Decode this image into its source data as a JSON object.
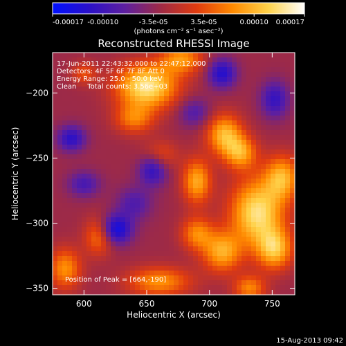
{
  "chart_data": {
    "type": "heatmap",
    "title": "Reconstructed RHESSI Image",
    "xlabel": "Heliocentric X (arcsec)",
    "ylabel": "Heliocentric Y (arcsec)",
    "xlim": [
      575,
      768
    ],
    "ylim": [
      -355,
      -169
    ],
    "x_ticks": [
      600,
      650,
      700,
      750
    ],
    "y_ticks": [
      -200,
      -250,
      -300,
      -350
    ],
    "annotations": [
      "17-Jun-2011 22:43:32.000 to 22:47:12.000",
      "Detectors: 4F 5F 6F 7F 8F  Att 0",
      "Energy Range: 25.0 - 50.0 keV",
      "Clean     Total counts: 3.56e+03"
    ],
    "peak_label": "Position of Peak = [664,-190]",
    "peak_position": [
      664,
      -190
    ],
    "colorbar": {
      "ticks": [
        "-0.00017",
        "-0.00010",
        "-3.5e-05",
        "3.5e-05",
        "0.00010",
        "0.00017"
      ],
      "unit_label": "(photons cm⁻² s⁻¹ asec⁻²)",
      "range": [
        -0.00017,
        0.00017
      ],
      "colors": [
        "#0010ff",
        "#2a10c8",
        "#5d1fa0",
        "#9e2a46",
        "#e03b0f",
        "#ff8a00",
        "#ffd24a",
        "#ffffff"
      ]
    },
    "features": [
      {
        "kind": "peak",
        "x": 650,
        "y": -195,
        "amp": 1.0,
        "sx": 17,
        "sy": 12
      },
      {
        "kind": "peak",
        "x": 678,
        "y": -174,
        "amp": 0.6,
        "sx": 12,
        "sy": 8
      },
      {
        "kind": "peak",
        "x": 640,
        "y": -220,
        "amp": 0.5,
        "sx": 11,
        "sy": 8
      },
      {
        "kind": "peak",
        "x": 712,
        "y": -232,
        "amp": 0.75,
        "sx": 10,
        "sy": 11
      },
      {
        "kind": "peak",
        "x": 725,
        "y": -246,
        "amp": 0.65,
        "sx": 9,
        "sy": 9
      },
      {
        "kind": "peak",
        "x": 690,
        "y": -268,
        "amp": 0.7,
        "sx": 8,
        "sy": 12
      },
      {
        "kind": "peak",
        "x": 738,
        "y": -292,
        "amp": 0.95,
        "sx": 15,
        "sy": 18
      },
      {
        "kind": "peak",
        "x": 758,
        "y": -265,
        "amp": 0.7,
        "sx": 10,
        "sy": 12
      },
      {
        "kind": "peak",
        "x": 752,
        "y": -320,
        "amp": 0.75,
        "sx": 10,
        "sy": 11
      },
      {
        "kind": "peak",
        "x": 710,
        "y": -322,
        "amp": 0.7,
        "sx": 11,
        "sy": 11
      },
      {
        "kind": "peak",
        "x": 690,
        "y": -308,
        "amp": 0.55,
        "sx": 9,
        "sy": 9
      },
      {
        "kind": "peak",
        "x": 660,
        "y": -345,
        "amp": 0.6,
        "sx": 18,
        "sy": 8
      },
      {
        "kind": "peak",
        "x": 612,
        "y": -310,
        "amp": 0.55,
        "sx": 8,
        "sy": 10
      },
      {
        "kind": "peak",
        "x": 585,
        "y": -335,
        "amp": 0.6,
        "sx": 9,
        "sy": 11
      },
      {
        "kind": "peak",
        "x": 660,
        "y": -248,
        "amp": 0.4,
        "sx": 10,
        "sy": 8
      },
      {
        "kind": "peak",
        "x": 732,
        "y": -350,
        "amp": 0.55,
        "sx": 9,
        "sy": 7
      },
      {
        "kind": "peak",
        "x": 600,
        "y": -185,
        "amp": 0.35,
        "sx": 7,
        "sy": 6
      },
      {
        "kind": "dip",
        "x": 625,
        "y": -305,
        "amp": -0.75,
        "sx": 9,
        "sy": 8
      },
      {
        "kind": "dip",
        "x": 655,
        "y": -258,
        "amp": -0.6,
        "sx": 8,
        "sy": 9
      },
      {
        "kind": "dip",
        "x": 710,
        "y": -185,
        "amp": -0.6,
        "sx": 8,
        "sy": 8
      },
      {
        "kind": "dip",
        "x": 590,
        "y": -235,
        "amp": -0.55,
        "sx": 8,
        "sy": 7
      },
      {
        "kind": "dip",
        "x": 752,
        "y": -205,
        "amp": -0.5,
        "sx": 8,
        "sy": 10
      },
      {
        "kind": "dip",
        "x": 600,
        "y": -270,
        "amp": -0.4,
        "sx": 9,
        "sy": 7
      },
      {
        "kind": "dip",
        "x": 688,
        "y": -215,
        "amp": -0.35,
        "sx": 9,
        "sy": 8
      },
      {
        "kind": "dip",
        "x": 640,
        "y": -285,
        "amp": -0.35,
        "sx": 10,
        "sy": 9
      }
    ],
    "baseline": -0.15
  },
  "footer_timestamp": "15-Aug-2013 09:42"
}
